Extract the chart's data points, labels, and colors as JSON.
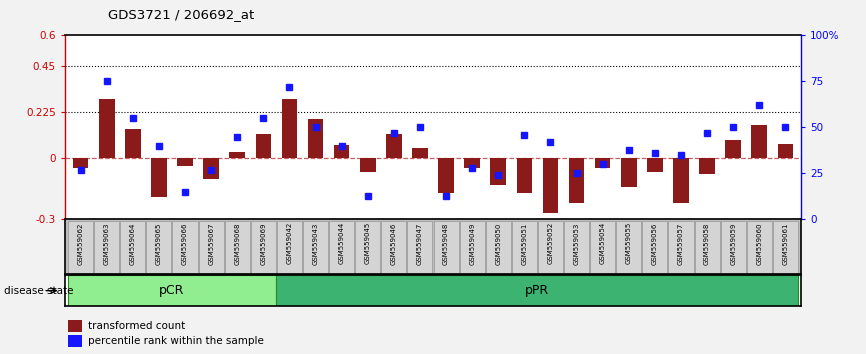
{
  "title": "GDS3721 / 206692_at",
  "samples": [
    "GSM559062",
    "GSM559063",
    "GSM559064",
    "GSM559065",
    "GSM559066",
    "GSM559067",
    "GSM559068",
    "GSM559069",
    "GSM559042",
    "GSM559043",
    "GSM559044",
    "GSM559045",
    "GSM559046",
    "GSM559047",
    "GSM559048",
    "GSM559049",
    "GSM559050",
    "GSM559051",
    "GSM559052",
    "GSM559053",
    "GSM559054",
    "GSM559055",
    "GSM559056",
    "GSM559057",
    "GSM559058",
    "GSM559059",
    "GSM559060",
    "GSM559061"
  ],
  "transformed_count": [
    -0.05,
    0.29,
    0.14,
    -0.19,
    -0.04,
    -0.1,
    0.03,
    0.12,
    0.29,
    0.19,
    0.065,
    -0.07,
    0.12,
    0.05,
    -0.17,
    -0.05,
    -0.13,
    -0.17,
    -0.27,
    -0.22,
    -0.05,
    -0.14,
    -0.07,
    -0.22,
    -0.08,
    0.09,
    0.16,
    0.07
  ],
  "percentile_rank": [
    27,
    75,
    55,
    40,
    15,
    27,
    45,
    55,
    72,
    50,
    40,
    13,
    47,
    50,
    13,
    28,
    24,
    46,
    42,
    25,
    30,
    38,
    36,
    35,
    47,
    50,
    62,
    50
  ],
  "pCR_count": 8,
  "pPR_count": 20,
  "ylim_left": [
    -0.3,
    0.6
  ],
  "ylim_right": [
    0,
    100
  ],
  "yticks_left": [
    -0.3,
    0.0,
    0.225,
    0.45,
    0.6
  ],
  "yticks_right": [
    0,
    25,
    50,
    75,
    100
  ],
  "hlines": [
    0.45,
    0.225
  ],
  "bar_color": "#8B1A1A",
  "dot_color": "#1515FF",
  "background_plot": "#FFFFFF",
  "pCR_color": "#90EE90",
  "pPR_color": "#3CB371",
  "dashed_zero_color": "#CD5C5C",
  "legend_bar_label": "transformed count",
  "legend_dot_label": "percentile rank within the sample",
  "disease_state_label": "disease state"
}
